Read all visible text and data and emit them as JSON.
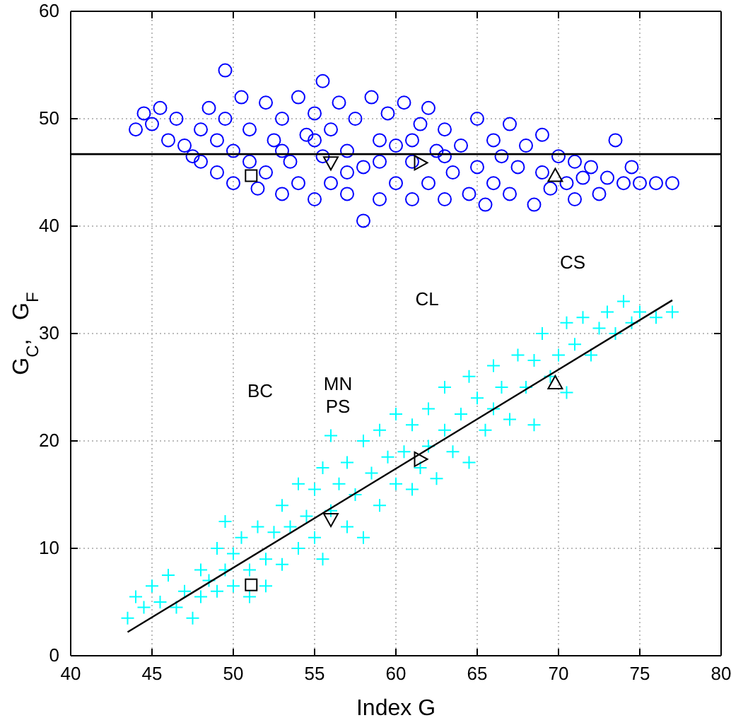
{
  "chart_data": {
    "type": "scatter",
    "xlabel": "Index G",
    "ylabel": "G$_{C}$,   G$_{F}$",
    "xlim": [
      40,
      80
    ],
    "ylim": [
      0,
      60
    ],
    "xticks": [
      40,
      45,
      50,
      55,
      60,
      65,
      70,
      75,
      80
    ],
    "yticks": [
      0,
      10,
      20,
      30,
      40,
      50,
      60
    ],
    "grid": true,
    "series": [
      {
        "marker": "circle",
        "color": "#0000ff",
        "x": [
          44,
          44.5,
          45,
          45.5,
          46,
          46.5,
          47,
          47.5,
          48,
          48,
          48.5,
          49,
          49,
          49.5,
          49.5,
          50,
          50,
          50.5,
          51,
          51,
          51.5,
          52,
          52,
          52.5,
          53,
          53,
          53.5,
          54,
          54,
          54.5,
          55,
          55,
          55.5,
          55.5,
          56,
          56,
          56.5,
          57,
          57,
          57.5,
          58,
          58,
          58.5,
          59,
          59,
          59.5,
          60,
          60,
          60.5,
          61,
          61,
          61.5,
          62,
          62,
          62.5,
          63,
          63,
          63.5,
          64,
          64.5,
          65,
          65,
          65.5,
          66,
          66,
          66.5,
          67,
          67,
          67.5,
          68,
          68.5,
          69,
          69,
          69.5,
          70,
          70.5,
          71,
          71,
          71.5,
          72,
          72.5,
          73,
          73.5,
          74,
          74.5,
          75,
          76,
          77,
          53,
          57,
          59,
          61,
          55,
          63
        ],
        "values": [
          49,
          50.5,
          49.5,
          51,
          48,
          50,
          47.5,
          46.5,
          49,
          46,
          51,
          45,
          48,
          54.5,
          50,
          44,
          47,
          52,
          46,
          49,
          43.5,
          51.5,
          45,
          48,
          43,
          50,
          46,
          52,
          44,
          48.5,
          42.5,
          50.5,
          53.5,
          46.5,
          44,
          49,
          51.5,
          43,
          47,
          50,
          40.5,
          45.5,
          52,
          42.5,
          48,
          50.5,
          44,
          47.5,
          51.5,
          42.5,
          46,
          49.5,
          44,
          51,
          47,
          42.5,
          49,
          45,
          47.5,
          43,
          50,
          45.5,
          42,
          48,
          44,
          46.5,
          49.5,
          43,
          45.5,
          47.5,
          42,
          45,
          48.5,
          43.5,
          46.5,
          44,
          42.5,
          46,
          44.5,
          45.5,
          43,
          44.5,
          48,
          44,
          45.5,
          44,
          44,
          44,
          47,
          45,
          46,
          48,
          48,
          46.5
        ]
      },
      {
        "marker": "cross",
        "color": "#00ffff",
        "x": [
          43.5,
          44,
          44.5,
          45,
          45.5,
          46,
          46.5,
          47,
          47.5,
          48,
          48,
          48.5,
          49,
          49,
          49.5,
          49.5,
          50,
          50,
          50.5,
          51,
          51,
          51.5,
          52,
          52,
          52.5,
          53,
          53,
          53.5,
          54,
          54,
          54.5,
          55,
          55,
          55.5,
          55.5,
          56,
          56,
          56.5,
          57,
          57,
          57.5,
          58,
          58,
          58.5,
          59,
          59,
          59.5,
          60,
          60,
          60.5,
          61,
          61,
          61.5,
          62,
          62,
          62.5,
          63,
          63,
          63.5,
          64,
          64.5,
          64.5,
          65,
          65.5,
          66,
          66,
          66.5,
          67,
          67.5,
          68,
          68.5,
          68.5,
          69,
          69.5,
          70,
          70.5,
          70.5,
          71,
          71.5,
          72,
          72.5,
          73,
          73.5,
          74,
          74.5,
          75,
          76,
          77
        ],
        "values": [
          3.5,
          5.5,
          4.5,
          6.5,
          5,
          7.5,
          4.5,
          6,
          3.5,
          8,
          5.5,
          7,
          10,
          6,
          12.5,
          8,
          6.5,
          9.5,
          11,
          8,
          5.5,
          12,
          9,
          6.5,
          11.5,
          14,
          8.5,
          12,
          10,
          16,
          13,
          11,
          15.5,
          17.5,
          9,
          20.5,
          13.5,
          16,
          12,
          18,
          15,
          20,
          11,
          17,
          14,
          21,
          18.5,
          16,
          22.5,
          19,
          15.5,
          21.5,
          17.5,
          23,
          19.5,
          16.5,
          21,
          25,
          19,
          22.5,
          18,
          26,
          24,
          21,
          27,
          23,
          25,
          22,
          28,
          25,
          21.5,
          27.5,
          30,
          26,
          28,
          31,
          24.5,
          29,
          31.5,
          28,
          30.5,
          32,
          30,
          33,
          31,
          32,
          31.5,
          32
        ]
      },
      {
        "type": "line",
        "color": "#000000",
        "x": [
          43.5,
          77
        ],
        "values": [
          2.2,
          33.1
        ]
      },
      {
        "marker": "square",
        "color": "#000000",
        "x": [
          51.1,
          51.1
        ],
        "values": [
          44.7,
          6.6
        ]
      },
      {
        "marker": "triangle-down",
        "color": "#000000",
        "x": [
          56,
          56
        ],
        "values": [
          45.9,
          12.7
        ]
      },
      {
        "marker": "triangle-right",
        "color": "#000000",
        "x": [
          61.5,
          61.5
        ],
        "values": [
          45.9,
          18.3
        ]
      },
      {
        "marker": "triangle",
        "color": "#000000",
        "x": [
          69.8,
          69.8
        ],
        "values": [
          44.7,
          25.4
        ]
      }
    ],
    "ref_lines": [
      {
        "axis": "y",
        "value": 46.7,
        "color": "#000000"
      }
    ],
    "annotations": [
      "BC",
      "MN",
      "PS",
      "CL",
      "CS"
    ]
  }
}
